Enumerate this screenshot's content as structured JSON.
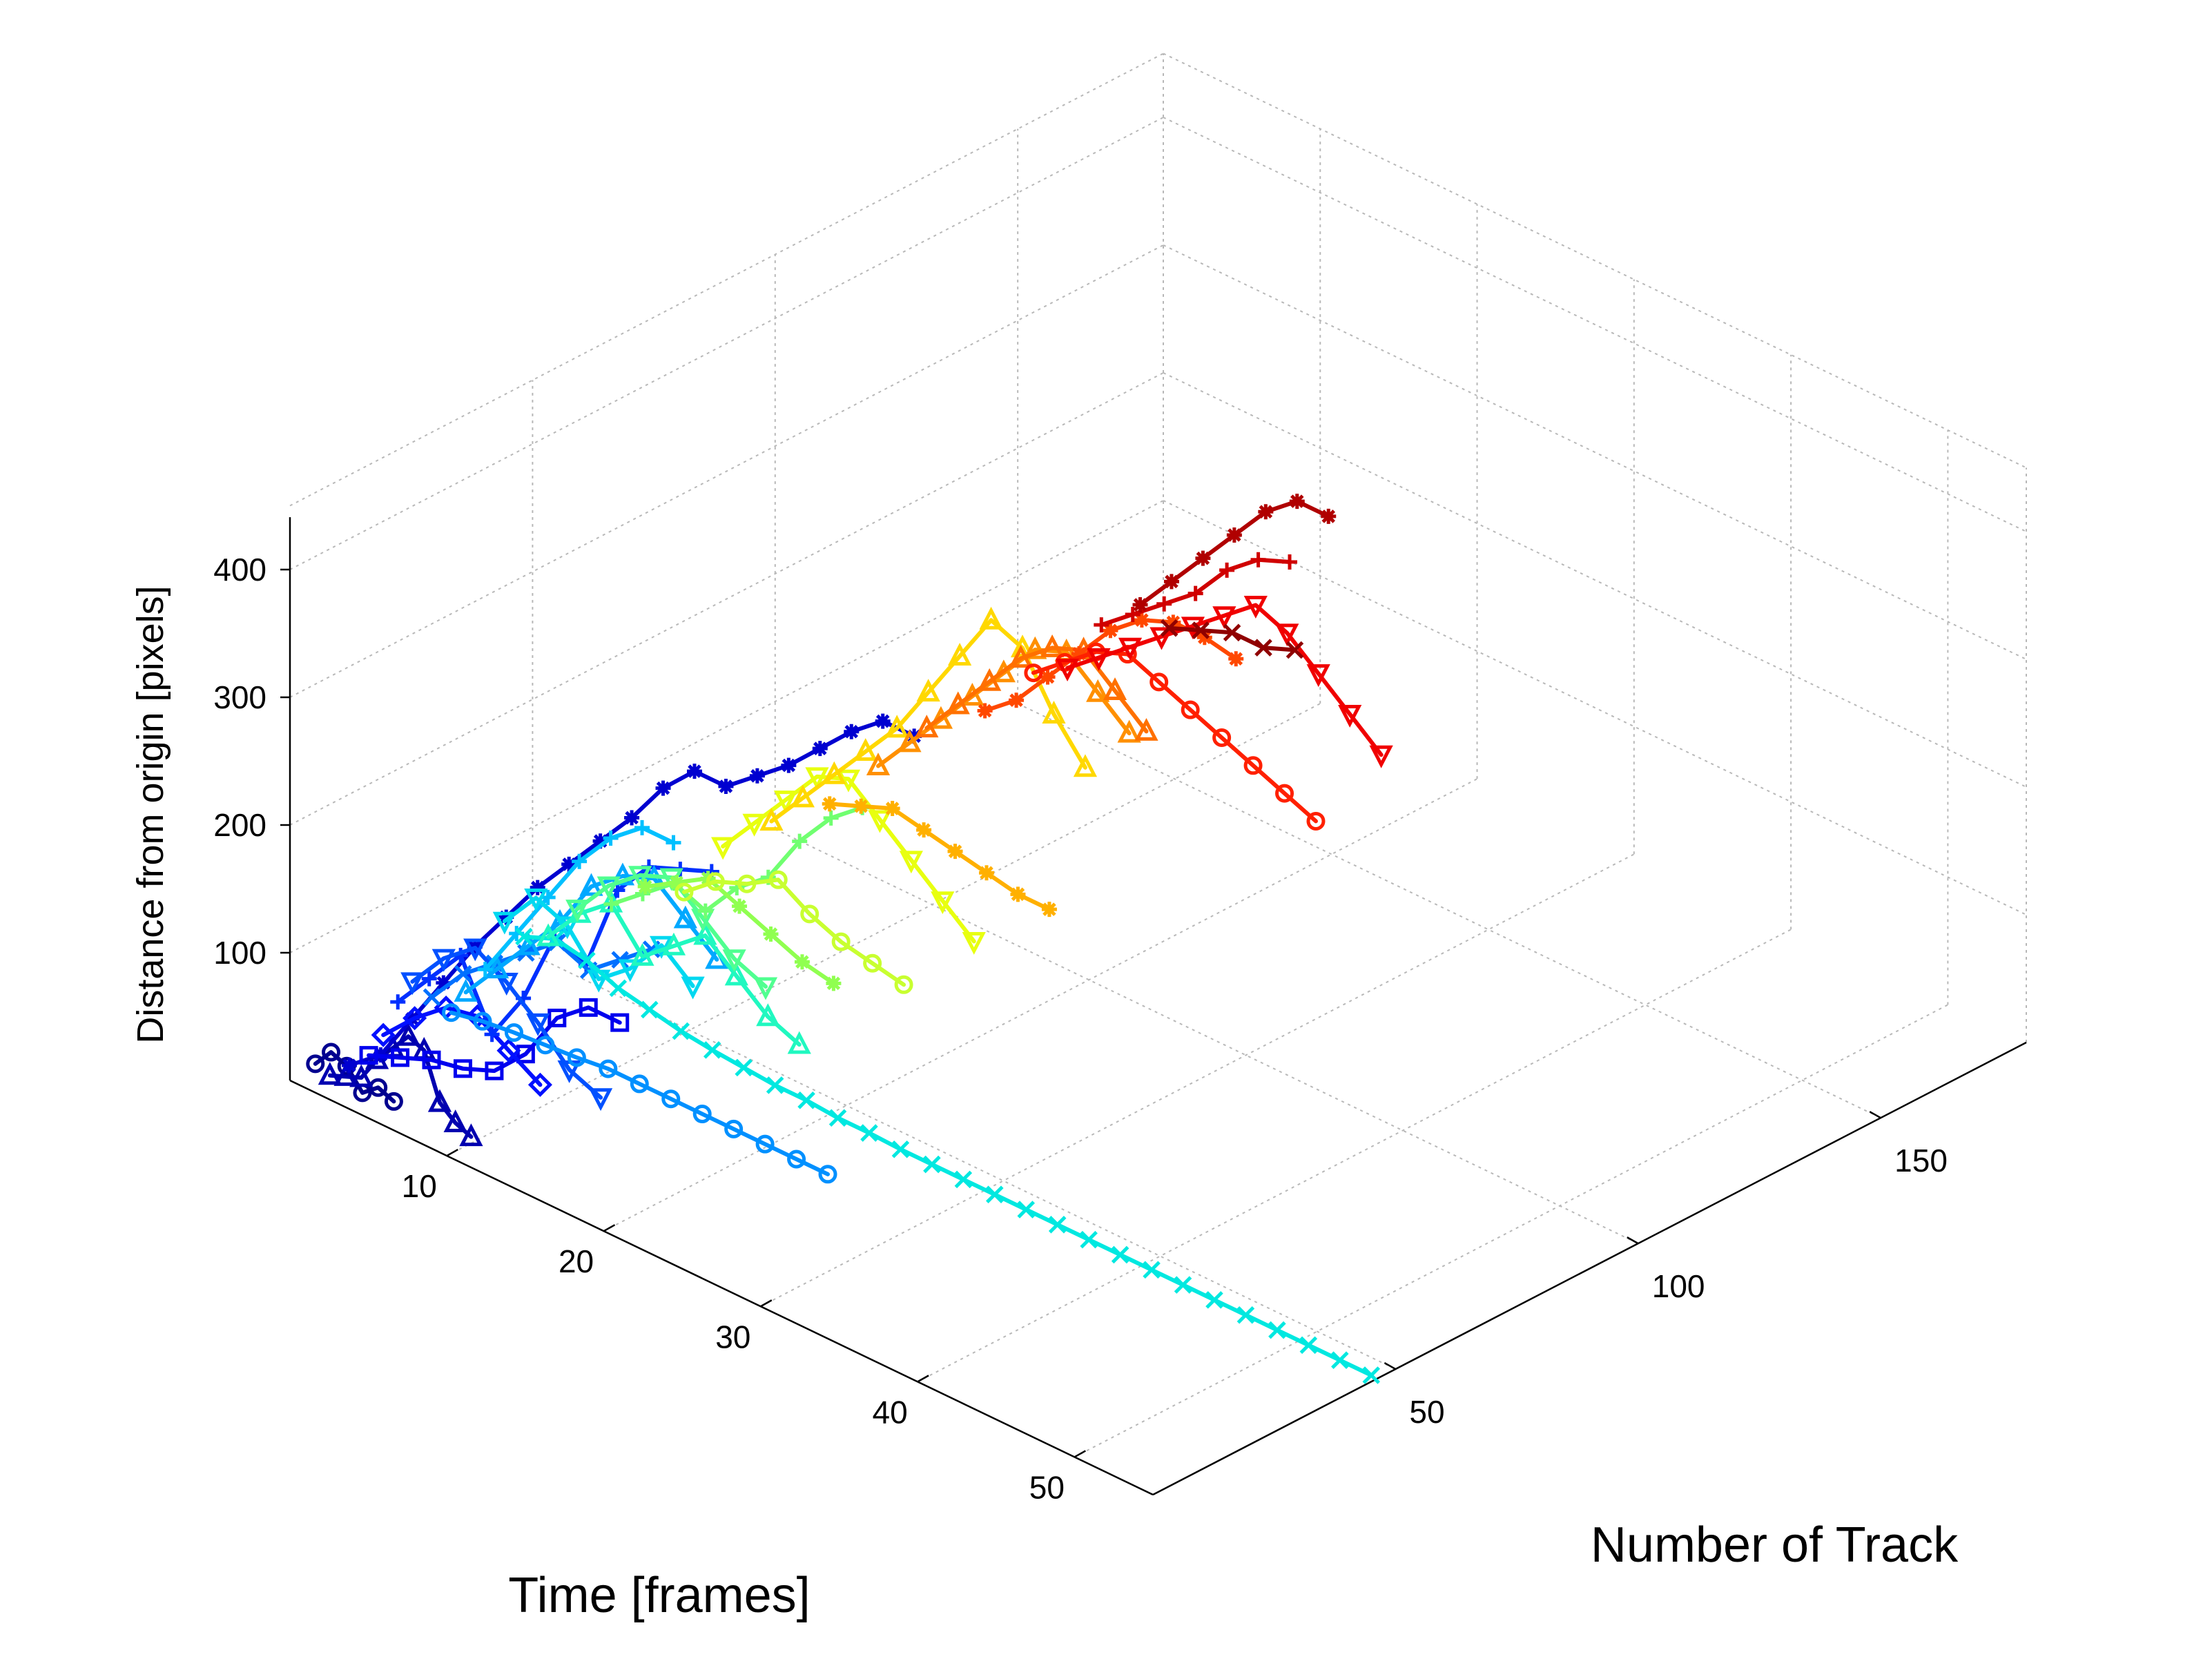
{
  "chart_data": {
    "type": "line",
    "projection": "3d",
    "xlabel": "Time [frames]",
    "ylabel": "Number of Track",
    "zlabel": "Distance from origin [pixels]",
    "xlim": [
      0,
      55
    ],
    "ylim": [
      0,
      180
    ],
    "zlim": [
      0,
      450
    ],
    "xticks": [
      10,
      20,
      30,
      40,
      50
    ],
    "yticks": [
      50,
      100,
      150
    ],
    "zticks": [
      100,
      200,
      300,
      400
    ],
    "grid": true,
    "legend": "none",
    "colormap": "jet",
    "series": [
      {
        "track": 2,
        "color": "#00008f",
        "marker": "circle",
        "x": [
          1,
          2,
          3,
          4,
          5,
          6
        ],
        "z": [
          15,
          30,
          25,
          10,
          20,
          15
        ]
      },
      {
        "track": 5,
        "color": "#0000b0",
        "marker": "triangle",
        "x": [
          1,
          2,
          3,
          4,
          5,
          6,
          7,
          8,
          9,
          10
        ],
        "z": [
          0,
          5,
          10,
          30,
          45,
          60,
          55,
          20,
          10,
          5
        ]
      },
      {
        "track": 9,
        "color": "#0000d0",
        "marker": "star",
        "x": [
          1,
          3,
          5,
          7,
          9,
          11,
          13,
          15,
          17,
          19,
          21,
          23,
          25,
          27,
          29,
          31,
          33,
          35,
          37
        ],
        "z": [
          0,
          20,
          60,
          100,
          140,
          175,
          210,
          240,
          270,
          300,
          335,
          360,
          360,
          380,
          400,
          425,
          450,
          470,
          470
        ]
      },
      {
        "track": 13,
        "color": "#0000ee",
        "marker": "square",
        "x": [
          1,
          3,
          5,
          7,
          9,
          11,
          13,
          15,
          17
        ],
        "z": [
          0,
          10,
          20,
          25,
          35,
          60,
          100,
          120,
          120
        ]
      },
      {
        "track": 16,
        "color": "#0010ff",
        "marker": "diamond",
        "x": [
          1,
          3,
          5,
          7,
          9,
          11
        ],
        "z": [
          10,
          35,
          55,
          60,
          45,
          30
        ]
      },
      {
        "track": 19,
        "color": "#0030ff",
        "marker": "plus",
        "x": [
          1,
          3,
          5,
          7,
          9,
          11,
          13,
          15,
          17,
          19,
          21
        ],
        "z": [
          30,
          60,
          90,
          40,
          80,
          140,
          130,
          200,
          230,
          240,
          250
        ]
      },
      {
        "track": 22,
        "color": "#0050ff",
        "marker": "triangle-down",
        "x": [
          1,
          3,
          5,
          7,
          9,
          11,
          13
        ],
        "z": [
          40,
          70,
          90,
          75,
          55,
          30,
          20
        ]
      },
      {
        "track": 26,
        "color": "#0070ff",
        "marker": "x",
        "x": [
          1,
          3,
          5,
          7,
          9,
          11,
          13,
          15
        ],
        "z": [
          20,
          50,
          70,
          90,
          110,
          100,
          120,
          140
        ]
      },
      {
        "track": 30,
        "color": "#0090ff",
        "marker": "circle",
        "x": [
          1,
          3,
          5,
          7,
          9,
          11,
          13,
          15,
          17,
          19,
          21,
          23,
          25
        ],
        "z": [
          0,
          5,
          8,
          10,
          12,
          15,
          15,
          15,
          15,
          15,
          15,
          15,
          15
        ]
      },
      {
        "track": 33,
        "color": "#00a8ff",
        "marker": "triangle",
        "x": [
          1,
          3,
          5,
          7,
          9,
          11,
          13,
          15,
          17
        ],
        "z": [
          10,
          40,
          70,
          100,
          140,
          160,
          170,
          150,
          130
        ]
      },
      {
        "track": 37,
        "color": "#00c0ff",
        "marker": "plus",
        "x": [
          1,
          3,
          5,
          7,
          9,
          11,
          13
        ],
        "z": [
          20,
          60,
          100,
          140,
          170,
          190,
          190
        ]
      },
      {
        "track": 41,
        "color": "#00d8f0",
        "marker": "triangle-down",
        "x": [
          1,
          3,
          5,
          7,
          9,
          11,
          13
        ],
        "z": [
          50,
          80,
          70,
          40,
          60,
          90,
          70
        ]
      },
      {
        "track": 45,
        "color": "#00e8e0",
        "marker": "x",
        "x": [
          1,
          3,
          5,
          7,
          9,
          11,
          13,
          15,
          17,
          19,
          21,
          23,
          25,
          27,
          29,
          31,
          33,
          35,
          37,
          39,
          41,
          43,
          45,
          47,
          49,
          51,
          53,
          55
        ],
        "z": [
          30,
          40,
          35,
          25,
          20,
          15,
          12,
          10,
          8,
          8,
          6,
          6,
          5,
          5,
          5,
          5,
          5,
          5,
          5,
          5,
          5,
          5,
          5,
          5,
          5,
          5,
          5,
          5
        ]
      },
      {
        "track": 50,
        "color": "#20f8c0",
        "marker": "triangle",
        "x": [
          1,
          3,
          5,
          7,
          9,
          11,
          13,
          15,
          17
        ],
        "z": [
          20,
          50,
          70,
          40,
          60,
          80,
          60,
          40,
          30
        ]
      },
      {
        "track": 56,
        "color": "#50ff90",
        "marker": "triangle-down",
        "x": [
          1,
          3,
          5,
          7,
          9,
          11,
          13
        ],
        "z": [
          30,
          60,
          80,
          90,
          70,
          50,
          40
        ]
      },
      {
        "track": 63,
        "color": "#70ff70",
        "marker": "plus",
        "x": [
          1,
          3,
          5,
          7,
          9,
          11,
          13,
          15,
          17
        ],
        "z": [
          20,
          40,
          60,
          50,
          80,
          100,
          140,
          170,
          190
        ]
      },
      {
        "track": 70,
        "color": "#90ff50",
        "marker": "star",
        "x": [
          1,
          3,
          5,
          7,
          9,
          11,
          13
        ],
        "z": [
          20,
          35,
          50,
          40,
          30,
          20,
          15
        ]
      },
      {
        "track": 78,
        "color": "#c8ff30",
        "marker": "circle",
        "x": [
          1,
          3,
          5,
          7,
          9,
          11,
          13,
          15
        ],
        "z": [
          0,
          20,
          30,
          45,
          30,
          20,
          15,
          10
        ]
      },
      {
        "track": 86,
        "color": "#e8ff10",
        "marker": "triangle-down",
        "x": [
          1,
          3,
          5,
          7,
          9,
          11,
          13,
          15,
          17
        ],
        "z": [
          20,
          50,
          80,
          110,
          120,
          100,
          80,
          60,
          40
        ]
      },
      {
        "track": 96,
        "color": "#ffd800",
        "marker": "triangle",
        "x": [
          1,
          3,
          5,
          7,
          9,
          11,
          13,
          15,
          17,
          19,
          21
        ],
        "z": [
          20,
          50,
          80,
          110,
          140,
          180,
          220,
          260,
          250,
          210,
          180
        ]
      },
      {
        "track": 108,
        "color": "#ffb000",
        "marker": "star",
        "x": [
          1,
          3,
          5,
          7,
          9,
          11,
          13,
          15
        ],
        "z": [
          10,
          20,
          30,
          25,
          20,
          15,
          10,
          10
        ]
      },
      {
        "track": 118,
        "color": "#ff9000",
        "marker": "triangle",
        "x": [
          1,
          3,
          5,
          7,
          9,
          11,
          13,
          15,
          17
        ],
        "z": [
          20,
          50,
          80,
          110,
          140,
          170,
          180,
          160,
          140
        ]
      },
      {
        "track": 128,
        "color": "#ff7000",
        "marker": "triangle",
        "x": [
          1,
          3,
          5,
          7,
          9,
          11,
          13,
          15
        ],
        "z": [
          30,
          60,
          90,
          120,
          140,
          150,
          130,
          110
        ]
      },
      {
        "track": 140,
        "color": "#ff4800",
        "marker": "star",
        "x": [
          1,
          3,
          5,
          7,
          9,
          11,
          13,
          15,
          17
        ],
        "z": [
          20,
          40,
          70,
          100,
          130,
          150,
          160,
          160,
          155
        ]
      },
      {
        "track": 150,
        "color": "#ff2000",
        "marker": "circle",
        "x": [
          1,
          3,
          5,
          7,
          9,
          11,
          13,
          15,
          17,
          19
        ],
        "z": [
          30,
          50,
          70,
          80,
          70,
          60,
          50,
          40,
          30,
          20
        ]
      },
      {
        "track": 157,
        "color": "#f00000",
        "marker": "triangle-down",
        "x": [
          1,
          3,
          5,
          7,
          9,
          11,
          13,
          15,
          17,
          19,
          21
        ],
        "z": [
          20,
          40,
          60,
          80,
          100,
          120,
          140,
          130,
          110,
          90,
          70
        ]
      },
      {
        "track": 164,
        "color": "#d00000",
        "marker": "plus",
        "x": [
          1,
          3,
          5,
          7,
          9,
          11,
          13
        ],
        "z": [
          40,
          60,
          80,
          100,
          130,
          150,
          160
        ]
      },
      {
        "track": 172,
        "color": "#b00000",
        "marker": "star",
        "x": [
          1,
          3,
          5,
          7,
          9,
          11,
          13
        ],
        "z": [
          40,
          70,
          100,
          130,
          160,
          180,
          180
        ]
      },
      {
        "track": 178,
        "color": "#900000",
        "marker": "x",
        "x": [
          1,
          3,
          5,
          7,
          9
        ],
        "z": [
          10,
          20,
          30,
          30,
          40
        ]
      }
    ]
  }
}
